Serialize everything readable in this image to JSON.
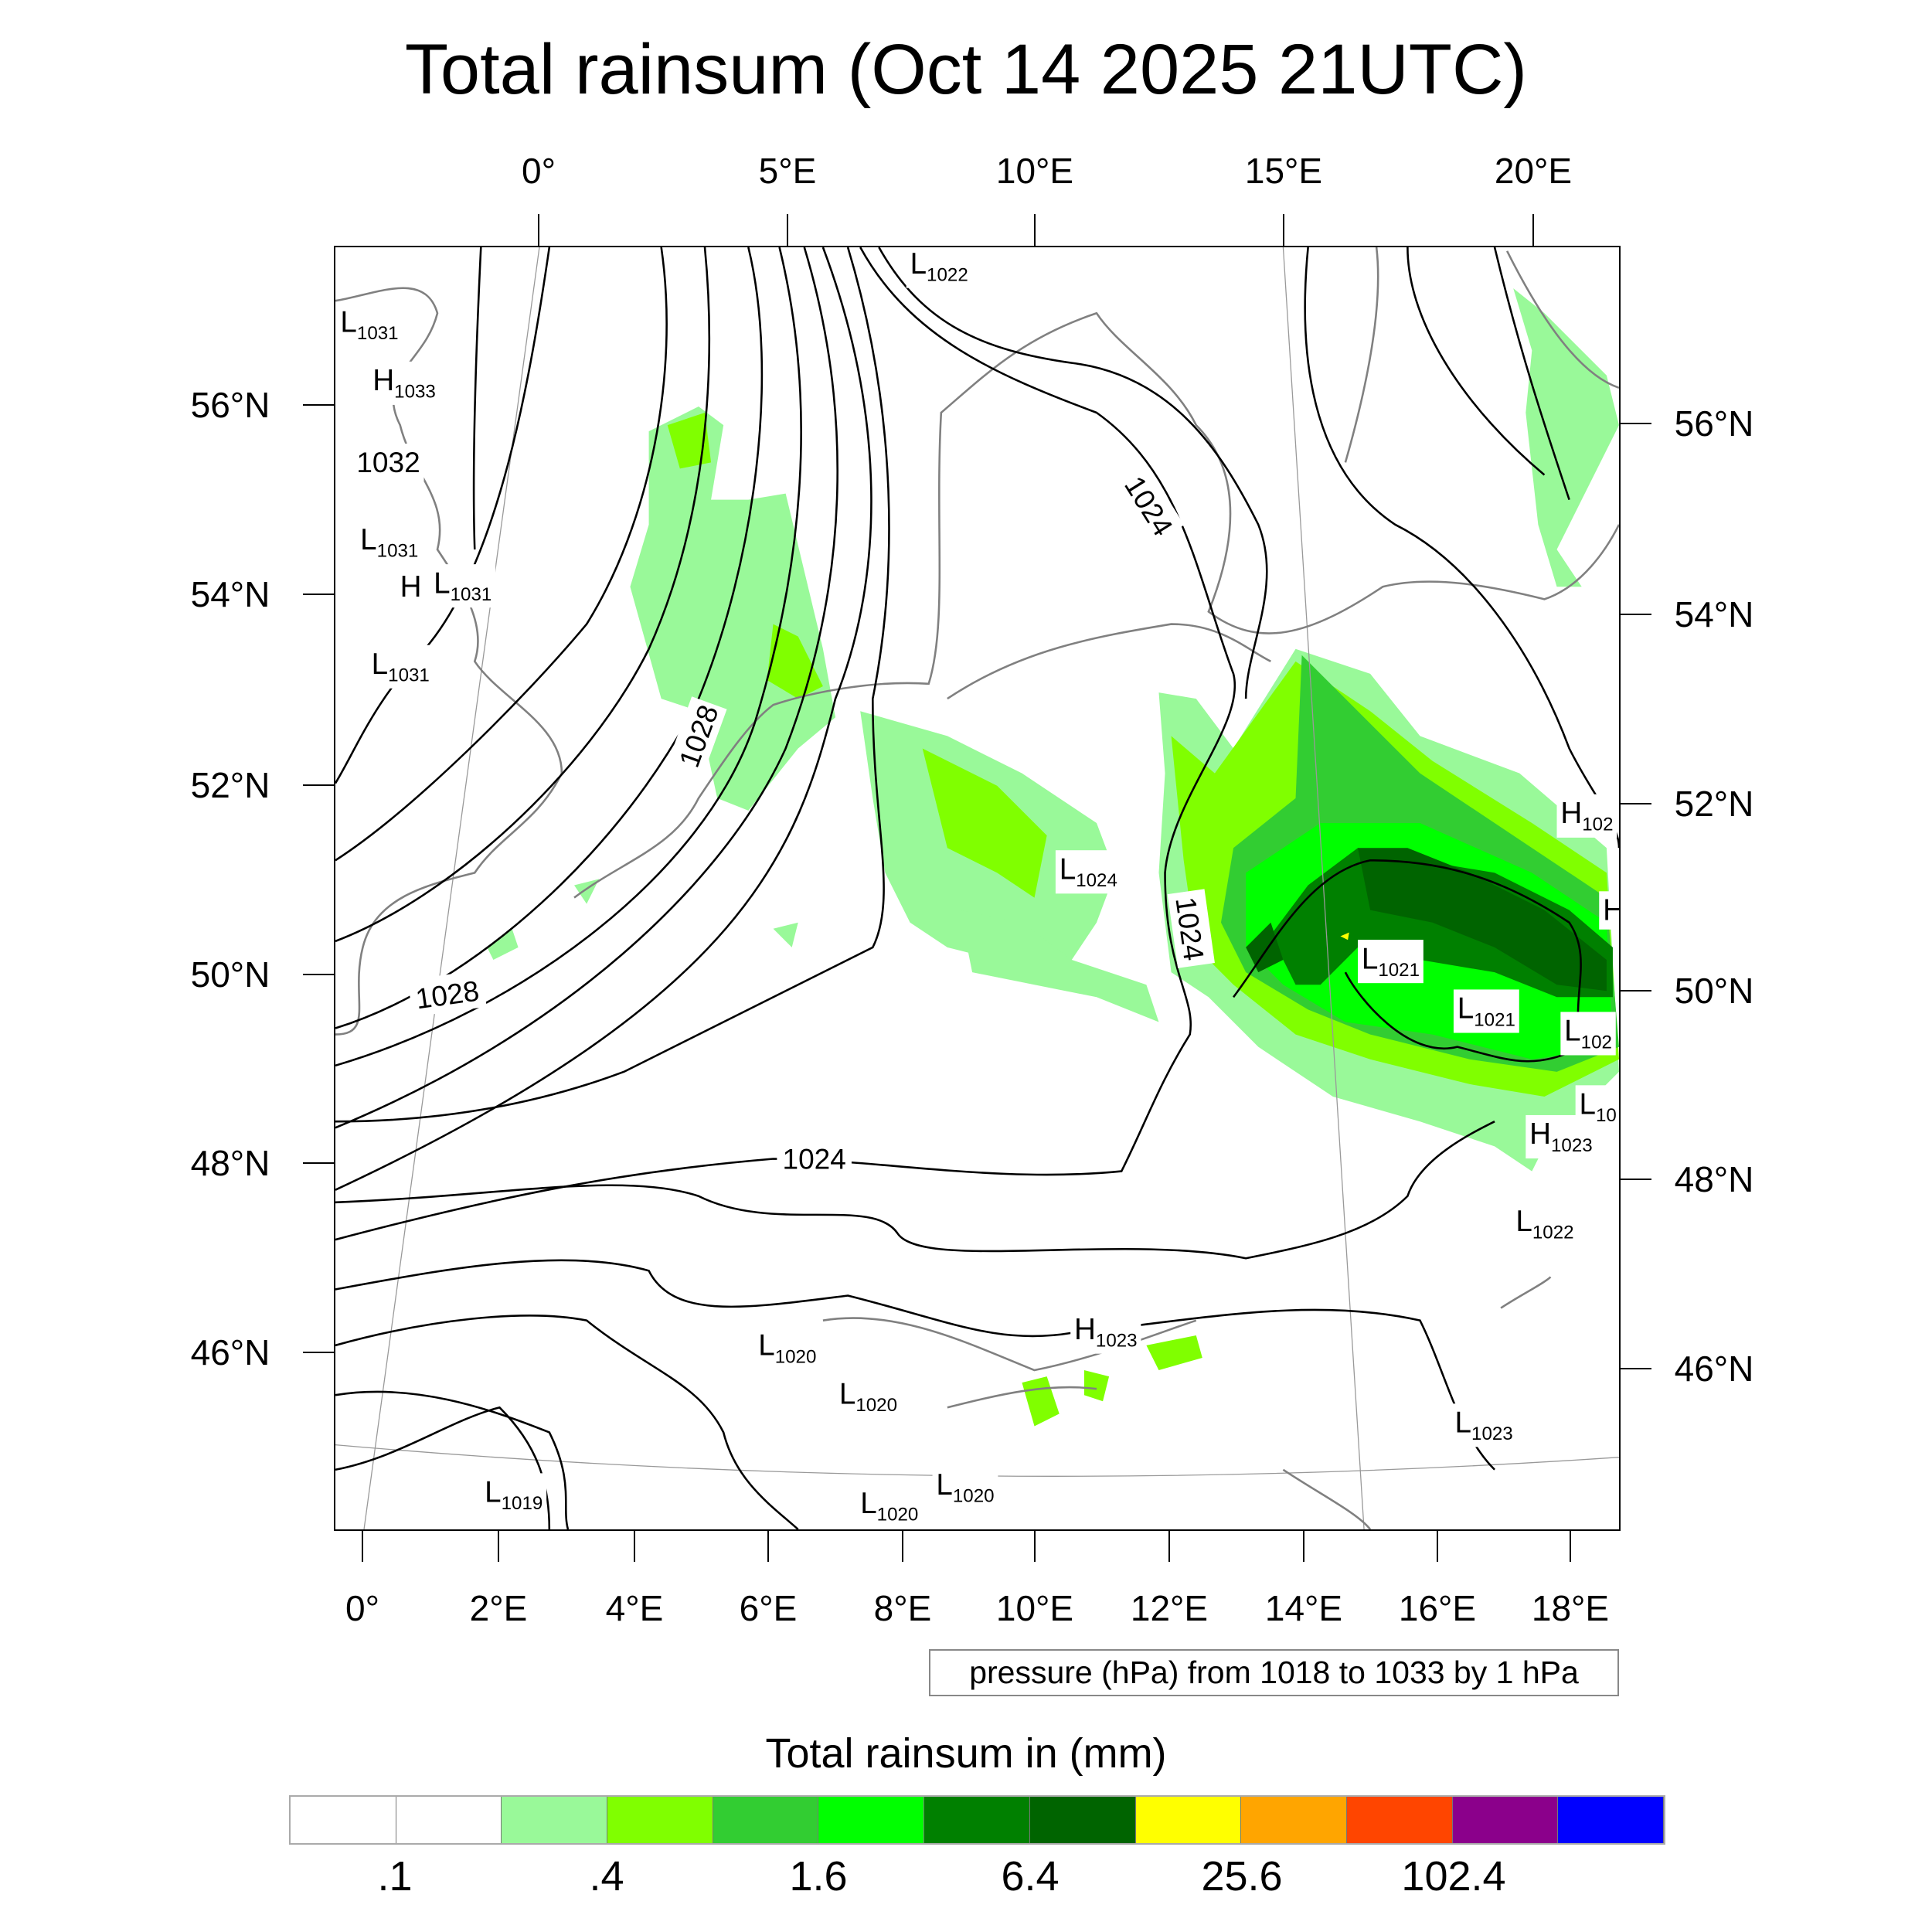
{
  "title": "Total rainsum (Oct 14 2025 21UTC)",
  "top_lon_labels": [
    "0°",
    "5°E",
    "10°E",
    "15°E",
    "20°E"
  ],
  "left_lat_labels": [
    "56°N",
    "54°N",
    "52°N",
    "50°N",
    "48°N",
    "46°N"
  ],
  "right_lat_labels": [
    "56°N",
    "54°N",
    "52°N",
    "50°N",
    "48°N",
    "46°N"
  ],
  "bottom_lon_labels": [
    "0°",
    "2°E",
    "4°E",
    "6°E",
    "8°E",
    "10°E",
    "12°E",
    "14°E",
    "16°E",
    "18°E"
  ],
  "contour_info": "pressure (hPa) from 1018 to 1033 by 1 hPa",
  "pressure_labels": [
    {
      "type": "L",
      "value": "1022"
    },
    {
      "type": "L",
      "value": "1031"
    },
    {
      "type": "H",
      "value": "1033"
    },
    {
      "type": "",
      "value": "1032"
    },
    {
      "type": "L",
      "value": "1031"
    },
    {
      "type": "H",
      "value": ""
    },
    {
      "type": "L",
      "value": "1031"
    },
    {
      "type": "L",
      "value": "1031"
    },
    {
      "type": "L",
      "value": "1024"
    },
    {
      "type": "L",
      "value": "1021"
    },
    {
      "type": "L",
      "value": "1021"
    },
    {
      "type": "L",
      "value": "102"
    },
    {
      "type": "H",
      "value": "102"
    },
    {
      "type": "H",
      "value": ""
    },
    {
      "type": "L",
      "value": "10"
    },
    {
      "type": "H",
      "value": "1023"
    },
    {
      "type": "L",
      "value": "1022"
    },
    {
      "type": "H",
      "value": "1023"
    },
    {
      "type": "L",
      "value": "1020"
    },
    {
      "type": "L",
      "value": "1020"
    },
    {
      "type": "L",
      "value": "1023"
    },
    {
      "type": "L",
      "value": "1019"
    },
    {
      "type": "L",
      "value": "1020"
    },
    {
      "type": "L",
      "value": "1020"
    }
  ],
  "contour_line_labels": [
    "1028",
    "1024",
    "1024",
    "1028",
    "1024"
  ],
  "chart_data": {
    "type": "heatmap",
    "title": "Total rainsum (Oct 14 2025 21UTC)",
    "colorbar_title": "Total rainsum in (mm)",
    "colorbar_levels": [
      ".1",
      ".4",
      "1.6",
      "6.4",
      "25.6",
      "102.4"
    ],
    "colorbar_colors": [
      "#ffffff",
      "#ffffff",
      "#99f999",
      "#80ff00",
      "#32cd32",
      "#00ff00",
      "#008000",
      "#006400",
      "#ffff00",
      "#ffa500",
      "#ff4500",
      "#8b008b",
      "#0000ff"
    ],
    "lon_range": [
      0,
      18.5
    ],
    "lat_range": [
      44.5,
      57.5
    ],
    "contour_variable": "pressure (hPa)",
    "contour_range": [
      1018,
      1033
    ],
    "contour_interval": 1
  }
}
